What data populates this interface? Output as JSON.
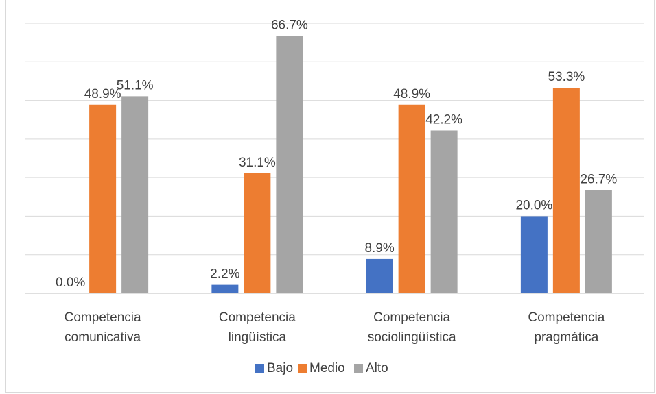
{
  "chart_data": {
    "type": "bar",
    "title": "",
    "xlabel": "",
    "ylabel": "",
    "ylim": [
      0,
      70
    ],
    "grid": true,
    "legend_position": "bottom",
    "categories": [
      [
        "Competencia",
        "comunicativa"
      ],
      [
        "Competencia",
        "lingüística"
      ],
      [
        "Competencia",
        "sociolingüística"
      ],
      [
        "Competencia",
        "pragmática"
      ]
    ],
    "series": [
      {
        "name": "Bajo",
        "color": "#4472c4",
        "values": [
          0.0,
          2.2,
          8.9,
          20.0
        ],
        "labels": [
          "0.0%",
          "2.2%",
          "8.9%",
          "20.0%"
        ]
      },
      {
        "name": "Medio",
        "color": "#ed7d31",
        "values": [
          48.9,
          31.1,
          48.9,
          53.3
        ],
        "labels": [
          "48.9%",
          "31.1%",
          "48.9%",
          "53.3%"
        ]
      },
      {
        "name": "Alto",
        "color": "#a5a5a5",
        "values": [
          51.1,
          66.7,
          42.2,
          26.7
        ],
        "labels": [
          "51.1%",
          "66.7%",
          "42.2%",
          "26.7%"
        ]
      }
    ]
  }
}
